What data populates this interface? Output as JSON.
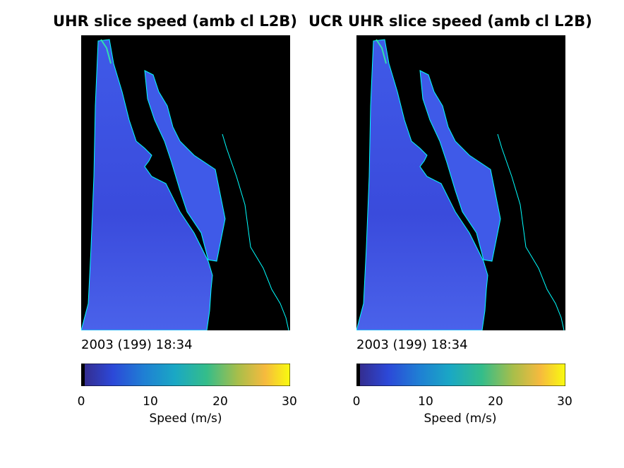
{
  "panels": [
    {
      "title": "UHR slice speed (amb cl L2B)",
      "timestamp": "2003 (199) 18:34",
      "colorbar_label": "Speed (m/s)"
    },
    {
      "title": "UCR UHR slice speed (amb cl L2B)",
      "timestamp": "2003 (199) 18:34",
      "colorbar_label": "Speed (m/s)"
    }
  ],
  "colorbar_ticks": [
    "0",
    "10",
    "20",
    "30"
  ],
  "colors": {
    "background": "#000000",
    "ocean": "#3a4fe0",
    "coastline": "#00ffff"
  },
  "chart_data": {
    "type": "heatmap",
    "colormap": "parula",
    "clim": [
      0,
      30
    ],
    "ticks": [
      0,
      10,
      20,
      30
    ],
    "colorbar_label": "Speed (m/s)",
    "panels": [
      {
        "title": "UHR slice speed (amb cl L2B)",
        "timestamp": "2003 (199) 18:34"
      },
      {
        "title": "UCR UHR slice speed (amb cl L2B)",
        "timestamp": "2003 (199) 18:34"
      }
    ]
  }
}
